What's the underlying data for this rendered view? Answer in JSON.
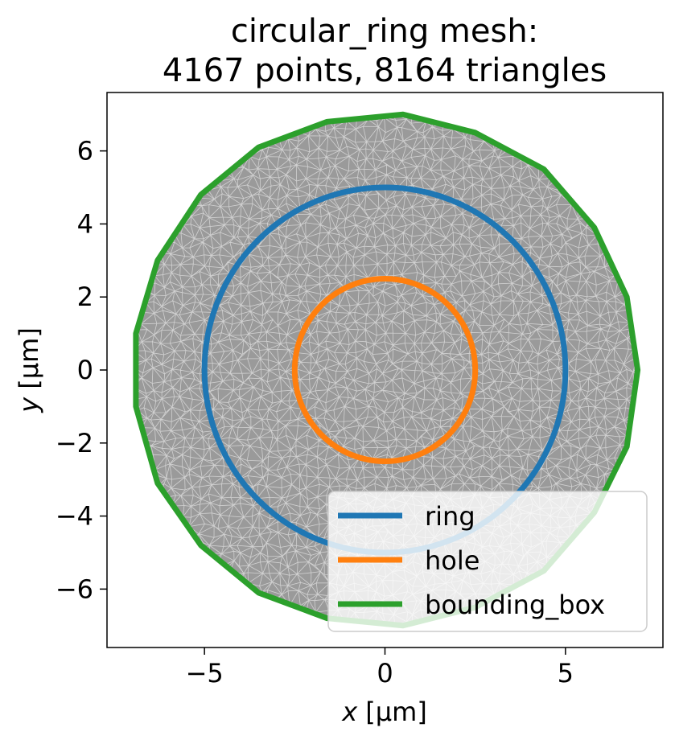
{
  "chart_data": {
    "type": "mesh-plot",
    "title_line1": "circular_ring mesh:",
    "title_line2": "4167 points, 8164 triangles",
    "xlabel_var": "x",
    "xlabel_unit": " [µm]",
    "ylabel_var": "y",
    "ylabel_unit": " [µm]",
    "xlim": [
      -7.7,
      7.7
    ],
    "ylim": [
      -7.6,
      7.6
    ],
    "xticks": [
      {
        "value": -5,
        "label": "−5"
      },
      {
        "value": 0,
        "label": "0"
      },
      {
        "value": 5,
        "label": "5"
      }
    ],
    "yticks": [
      {
        "value": 6,
        "label": "6"
      },
      {
        "value": 4,
        "label": "4"
      },
      {
        "value": 2,
        "label": "2"
      },
      {
        "value": 0,
        "label": "0"
      },
      {
        "value": -2,
        "label": "−2"
      },
      {
        "value": -4,
        "label": "−4"
      },
      {
        "value": -6,
        "label": "−6"
      }
    ],
    "mesh_color": "#808080",
    "series": [
      {
        "name": "ring",
        "shape": "circle",
        "center": [
          0,
          0
        ],
        "radius": 5,
        "color": "#1f77b4"
      },
      {
        "name": "hole",
        "shape": "circle",
        "center": [
          0,
          0
        ],
        "radius": 2.5,
        "color": "#ff7f0e"
      },
      {
        "name": "bounding_box",
        "shape": "polygon",
        "color": "#2ca02c",
        "points": [
          [
            0.5,
            7.0
          ],
          [
            2.5,
            6.5
          ],
          [
            4.4,
            5.5
          ],
          [
            5.8,
            3.9
          ],
          [
            6.7,
            2.0
          ],
          [
            7.0,
            0.0
          ],
          [
            6.7,
            -2.1
          ],
          [
            5.8,
            -3.9
          ],
          [
            4.4,
            -5.5
          ],
          [
            2.5,
            -6.5
          ],
          [
            0.5,
            -7.0
          ],
          [
            -1.6,
            -6.8
          ],
          [
            -3.5,
            -6.1
          ],
          [
            -5.1,
            -4.8
          ],
          [
            -6.3,
            -3.1
          ],
          [
            -6.9,
            -1.0
          ],
          [
            -6.9,
            1.0
          ],
          [
            -6.3,
            3.0
          ],
          [
            -5.1,
            4.8
          ],
          [
            -3.5,
            6.1
          ],
          [
            -1.6,
            6.8
          ]
        ]
      }
    ],
    "legend_placement": "lower right",
    "grid": false
  }
}
